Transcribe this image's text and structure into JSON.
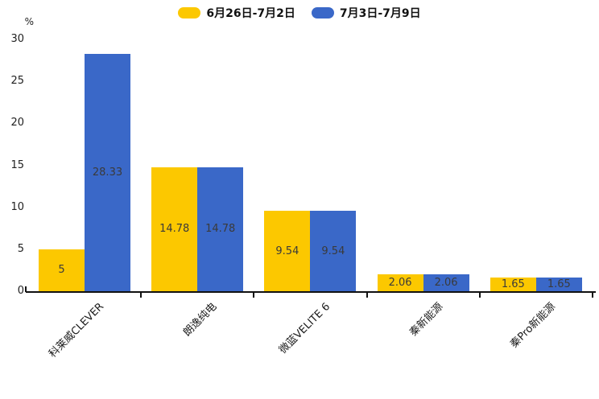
{
  "axis": {
    "unit_label": "%"
  },
  "chart_data": {
    "type": "bar",
    "title": "",
    "xlabel": "",
    "ylabel": "%",
    "categories": [
      "科莱威CLEVER",
      "朗逸纯电",
      "微蓝VELITE 6",
      "秦新能源",
      "秦Pro新能源"
    ],
    "series": [
      {
        "name": "6月26日-7月2日",
        "color": "#FCC800",
        "values": [
          5,
          14.78,
          9.54,
          2.06,
          1.65
        ]
      },
      {
        "name": "7月3日-7月9日",
        "color": "#3A68C8",
        "values": [
          28.33,
          14.78,
          9.54,
          2.06,
          1.65
        ]
      }
    ],
    "value_labels": [
      "5",
      "28.33",
      "14.78",
      "14.78",
      "9.54",
      "9.54",
      "2.06",
      "2.06",
      "1.65",
      "1.65"
    ],
    "ylim": [
      0,
      30
    ],
    "yticks": [
      0,
      5,
      10,
      15,
      20,
      25,
      30
    ],
    "grid": false,
    "legend_position": "top"
  }
}
